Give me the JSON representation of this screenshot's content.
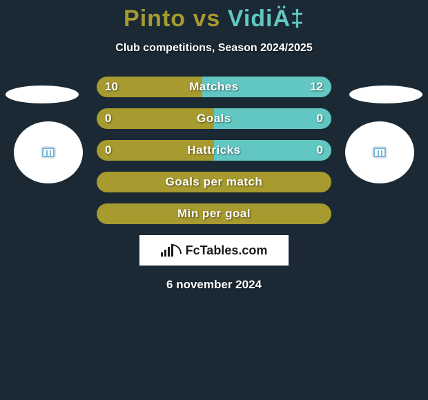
{
  "background_color": "#1a2934",
  "title": {
    "left_name": "Pinto",
    "vs": " vs ",
    "right_name": "VidiÄ‡",
    "left_color": "#a79a2e",
    "right_color": "#62c7c2",
    "fontsize": 34
  },
  "subtitle": "Club competitions, Season 2024/2025",
  "bars": [
    {
      "label": "Matches",
      "left": "10",
      "right": "12",
      "left_pct": 45,
      "right_pct": 55,
      "left_color": "#a79a2e",
      "right_color": "#62c7c2"
    },
    {
      "label": "Goals",
      "left": "0",
      "right": "0",
      "left_pct": 50,
      "right_pct": 50,
      "left_color": "#a79a2e",
      "right_color": "#62c7c2"
    },
    {
      "label": "Hattricks",
      "left": "0",
      "right": "0",
      "left_pct": 50,
      "right_pct": 50,
      "left_color": "#a79a2e",
      "right_color": "#62c7c2"
    },
    {
      "label": "Goals per match",
      "left": "",
      "right": "",
      "left_pct": 100,
      "right_pct": 0,
      "left_color": "#a79a2e",
      "right_color": "#62c7c2"
    },
    {
      "label": "Min per goal",
      "left": "",
      "right": "",
      "left_pct": 100,
      "right_pct": 0,
      "left_color": "#a79a2e",
      "right_color": "#62c7c2"
    }
  ],
  "bar_style": {
    "height": 30,
    "border_radius": 15,
    "spacing": 16,
    "text_color": "#ffffff",
    "fontsize": 17
  },
  "logo_text": "FcTables.com",
  "date": "6 november 2024",
  "badge_colors": {
    "ellipse": "#ffffff",
    "circle": "#ffffff",
    "chip_border": "#6fb8d8"
  }
}
